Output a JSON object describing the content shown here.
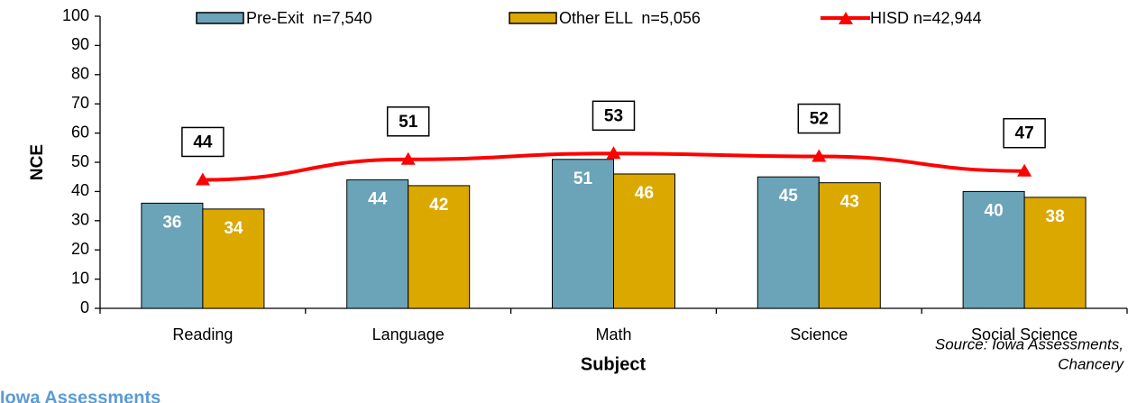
{
  "chart_data": {
    "type": "bar",
    "categories": [
      "Reading",
      "Language",
      "Math",
      "Science",
      "Social Science"
    ],
    "series": [
      {
        "name": "Pre-Exit  n=7,540",
        "color": "#6ba3b8",
        "type": "bar",
        "values": [
          36,
          44,
          51,
          45,
          40
        ]
      },
      {
        "name": "Other ELL  n=5,056",
        "color": "#dba800",
        "type": "bar",
        "values": [
          34,
          42,
          46,
          43,
          38
        ]
      },
      {
        "name": "HISD n=42,944",
        "color": "#ff0000",
        "type": "line",
        "values": [
          44,
          51,
          53,
          52,
          47
        ]
      }
    ],
    "ylabel": "NCE",
    "xlabel": "Subject",
    "ylim": [
      0,
      100
    ],
    "yticks": [
      0,
      10,
      20,
      30,
      40,
      50,
      60,
      70,
      80,
      90,
      100
    ],
    "source": [
      "Source: Iowa Assessments,",
      "Chancery"
    ],
    "footer": "Iowa Assessments"
  }
}
